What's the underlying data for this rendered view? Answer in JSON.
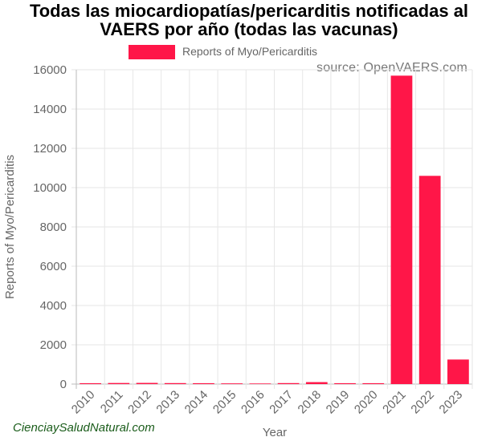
{
  "chart_data": {
    "type": "bar",
    "title": "Todas las miocardiopatías/pericarditis notificadas al VAERS por año (todas las vacunas)",
    "source": "source: OpenVAERS.com",
    "watermark": "CienciaySaludNatural.com",
    "xlabel": "Year",
    "ylabel": "Reports of Myo/Pericarditis",
    "ylim": [
      0,
      16000
    ],
    "yticks": [
      0,
      2000,
      4000,
      6000,
      8000,
      10000,
      12000,
      14000,
      16000
    ],
    "categories": [
      "2010",
      "2011",
      "2012",
      "2013",
      "2014",
      "2015",
      "2016",
      "2017",
      "2018",
      "2019",
      "2020",
      "2021",
      "2022",
      "2023"
    ],
    "series": [
      {
        "name": "Reports of Myo/Pericarditis",
        "color": "#ff1648",
        "values": [
          45,
          55,
          60,
          50,
          45,
          35,
          30,
          50,
          100,
          45,
          45,
          15700,
          10600,
          1250
        ]
      }
    ],
    "grid": true,
    "legend": "top-center"
  }
}
